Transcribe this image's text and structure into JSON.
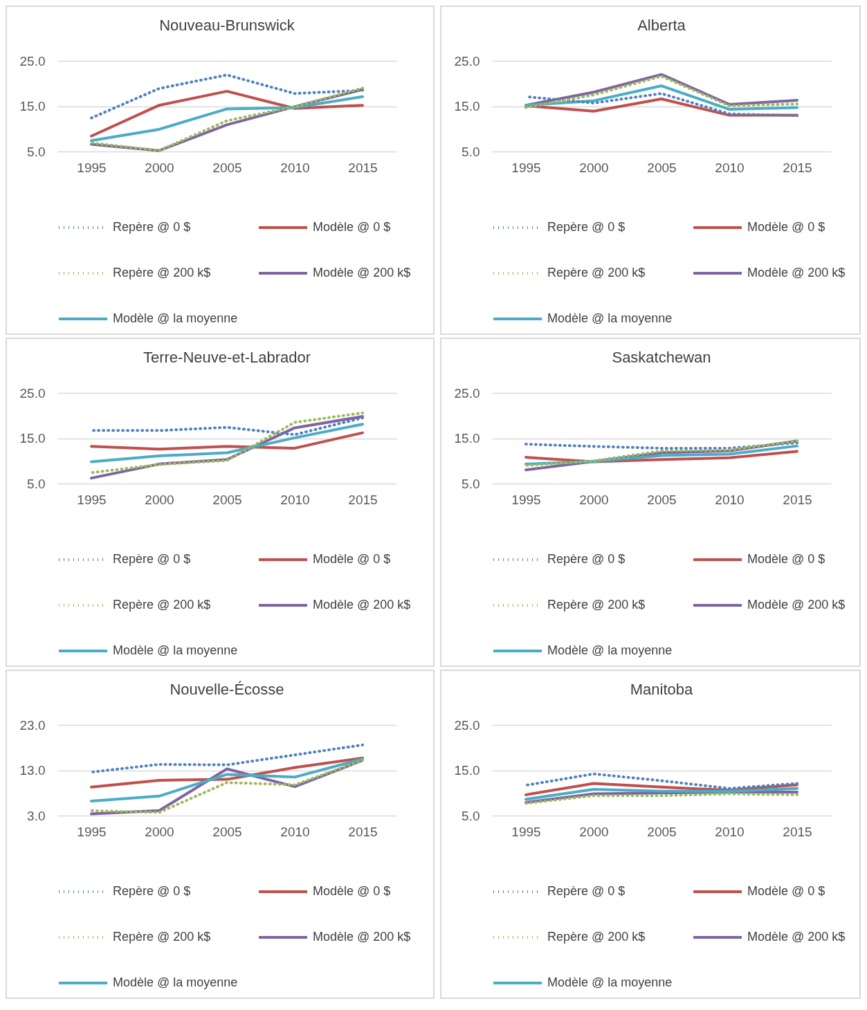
{
  "chart_data": [
    {
      "type": "line",
      "title": "Nouveau-Brunswick",
      "categories": [
        "1995",
        "2000",
        "2005",
        "2010",
        "2015"
      ],
      "ylim": [
        5,
        25
      ],
      "yticks": [
        {
          "value": 5,
          "label": "5.0"
        },
        {
          "value": 15,
          "label": "15.0"
        },
        {
          "value": 25,
          "label": "25.0"
        }
      ],
      "grid": "y",
      "legend": "bottom",
      "series": [
        {
          "name": "Repère @ 0 $",
          "color": "#4f81bd",
          "line_style": "dotted",
          "values": [
            12.4,
            18.9,
            21.9,
            17.8,
            18.5
          ]
        },
        {
          "name": "Modèle @ 0 $",
          "color": "#c0504d",
          "line_style": "solid",
          "values": [
            8.4,
            15.2,
            18.3,
            14.5,
            15.2
          ]
        },
        {
          "name": "Repère @ 200 k$",
          "color": "#9bbb59",
          "line_style": "dotted",
          "values": [
            6.9,
            5.2,
            11.8,
            14.9,
            19.0
          ]
        },
        {
          "name": "Modèle @ 200 k$",
          "color": "#8064a2",
          "line_style": "solid",
          "values": [
            6.6,
            5.2,
            10.9,
            14.9,
            18.7
          ]
        },
        {
          "name": "Modèle @ la moyenne",
          "color": "#4bacc6",
          "line_style": "solid",
          "values": [
            7.4,
            9.9,
            14.4,
            14.7,
            17.1
          ]
        }
      ]
    },
    {
      "type": "line",
      "title": "Alberta",
      "categories": [
        "1995",
        "2000",
        "2005",
        "2010",
        "2015"
      ],
      "ylim": [
        5,
        25
      ],
      "yticks": [
        {
          "value": 5,
          "label": "5.0"
        },
        {
          "value": 15,
          "label": "15.0"
        },
        {
          "value": 25,
          "label": "25.0"
        }
      ],
      "grid": "y",
      "legend": "bottom",
      "series": [
        {
          "name": "Repère @ 0 $",
          "color": "#4f81bd",
          "line_style": "dotted",
          "values": [
            17.1,
            15.7,
            17.8,
            13.3,
            12.9
          ]
        },
        {
          "name": "Modèle @ 0 $",
          "color": "#c0504d",
          "line_style": "solid",
          "values": [
            15.1,
            13.9,
            16.6,
            13.0,
            13.0
          ]
        },
        {
          "name": "Repère @ 200 k$",
          "color": "#9bbb59",
          "line_style": "dotted",
          "values": [
            14.7,
            17.5,
            21.6,
            15.1,
            15.5
          ]
        },
        {
          "name": "Modèle @ 200 k$",
          "color": "#8064a2",
          "line_style": "solid",
          "values": [
            15.2,
            18.1,
            22.0,
            15.4,
            16.3
          ]
        },
        {
          "name": "Modèle @ la moyenne",
          "color": "#4bacc6",
          "line_style": "solid",
          "values": [
            15.2,
            16.2,
            19.5,
            14.3,
            14.7
          ]
        }
      ]
    },
    {
      "type": "line",
      "title": "Terre-Neuve-et-Labrador",
      "categories": [
        "1995",
        "2000",
        "2005",
        "2010",
        "2015"
      ],
      "ylim": [
        5,
        25
      ],
      "yticks": [
        {
          "value": 5,
          "label": "5.0"
        },
        {
          "value": 15,
          "label": "15.0"
        },
        {
          "value": 25,
          "label": "25.0"
        }
      ],
      "grid": "y",
      "legend": "bottom",
      "series": [
        {
          "name": "Repère @ 0 $",
          "color": "#4f81bd",
          "line_style": "dotted",
          "values": [
            16.7,
            16.7,
            17.4,
            15.8,
            19.5
          ]
        },
        {
          "name": "Modèle @ 0 $",
          "color": "#c0504d",
          "line_style": "solid",
          "values": [
            13.2,
            12.6,
            13.2,
            12.8,
            16.2
          ]
        },
        {
          "name": "Repère @ 200 k$",
          "color": "#9bbb59",
          "line_style": "dotted",
          "values": [
            7.4,
            9.2,
            10.1,
            18.5,
            20.6
          ]
        },
        {
          "name": "Modèle @ 200 k$",
          "color": "#8064a2",
          "line_style": "solid",
          "values": [
            6.2,
            9.3,
            10.3,
            17.3,
            19.8
          ]
        },
        {
          "name": "Modèle @ la moyenne",
          "color": "#4bacc6",
          "line_style": "solid",
          "values": [
            9.8,
            11.1,
            11.8,
            15.1,
            18.1
          ]
        }
      ]
    },
    {
      "type": "line",
      "title": "Saskatchewan",
      "categories": [
        "1995",
        "2000",
        "2005",
        "2010",
        "2015"
      ],
      "ylim": [
        5,
        25
      ],
      "yticks": [
        {
          "value": 5,
          "label": "5.0"
        },
        {
          "value": 15,
          "label": "15.0"
        },
        {
          "value": 25,
          "label": "25.0"
        }
      ],
      "grid": "y",
      "legend": "bottom",
      "series": [
        {
          "name": "Repère @ 0 $",
          "color": "#4f81bd",
          "line_style": "dotted",
          "values": [
            13.7,
            13.2,
            12.8,
            12.8,
            14.0
          ]
        },
        {
          "name": "Modèle @ 0 $",
          "color": "#c0504d",
          "line_style": "solid",
          "values": [
            10.8,
            9.8,
            10.3,
            10.7,
            12.1
          ]
        },
        {
          "name": "Repère @ 200 k$",
          "color": "#9bbb59",
          "line_style": "dotted",
          "values": [
            9.0,
            10.0,
            12.2,
            12.4,
            14.4
          ]
        },
        {
          "name": "Modèle @ 200 k$",
          "color": "#8064a2",
          "line_style": "solid",
          "values": [
            8.0,
            9.9,
            11.8,
            12.2,
            14.4
          ]
        },
        {
          "name": "Modèle @ la moyenne",
          "color": "#4bacc6",
          "line_style": "solid",
          "values": [
            9.3,
            9.9,
            11.2,
            11.5,
            13.3
          ]
        }
      ]
    },
    {
      "type": "line",
      "title": "Nouvelle-Écosse",
      "categories": [
        "1995",
        "2000",
        "2005",
        "2010",
        "2015"
      ],
      "ylim": [
        3,
        23
      ],
      "yticks": [
        {
          "value": 3,
          "label": "3.0"
        },
        {
          "value": 13,
          "label": "13.0"
        },
        {
          "value": 23,
          "label": "23.0"
        }
      ],
      "grid": "y",
      "legend": "bottom",
      "series": [
        {
          "name": "Repère @ 0 $",
          "color": "#4f81bd",
          "line_style": "dotted",
          "values": [
            12.6,
            14.3,
            14.2,
            16.4,
            18.6
          ]
        },
        {
          "name": "Modèle @ 0 $",
          "color": "#c0504d",
          "line_style": "solid",
          "values": [
            9.3,
            10.8,
            11.0,
            13.6,
            15.7
          ]
        },
        {
          "name": "Repère @ 200 k$",
          "color": "#9bbb59",
          "line_style": "dotted",
          "values": [
            4.1,
            3.7,
            10.3,
            9.8,
            15.2
          ]
        },
        {
          "name": "Modèle @ 200 k$",
          "color": "#8064a2",
          "line_style": "solid",
          "values": [
            3.4,
            4.1,
            13.3,
            9.4,
            15.2
          ]
        },
        {
          "name": "Modèle @ la moyenne",
          "color": "#4bacc6",
          "line_style": "solid",
          "values": [
            6.2,
            7.3,
            12.1,
            11.5,
            15.5
          ]
        }
      ]
    },
    {
      "type": "line",
      "title": "Manitoba",
      "categories": [
        "1995",
        "2000",
        "2005",
        "2010",
        "2015"
      ],
      "ylim": [
        5,
        25
      ],
      "yticks": [
        {
          "value": 5,
          "label": "5.0"
        },
        {
          "value": 15,
          "label": "15.0"
        },
        {
          "value": 25,
          "label": "25.0"
        }
      ],
      "grid": "y",
      "legend": "bottom",
      "series": [
        {
          "name": "Repère @ 0 $",
          "color": "#4f81bd",
          "line_style": "dotted",
          "values": [
            11.7,
            14.2,
            12.7,
            11.0,
            12.1
          ]
        },
        {
          "name": "Modèle @ 0 $",
          "color": "#c0504d",
          "line_style": "solid",
          "values": [
            9.6,
            12.1,
            11.3,
            10.6,
            11.8
          ]
        },
        {
          "name": "Repère @ 200 k$",
          "color": "#9bbb59",
          "line_style": "dotted",
          "values": [
            7.7,
            9.4,
            9.4,
            9.8,
            9.6
          ]
        },
        {
          "name": "Modèle @ 200 k$",
          "color": "#8064a2",
          "line_style": "solid",
          "values": [
            7.9,
            9.8,
            10.0,
            10.2,
            10.2
          ]
        },
        {
          "name": "Modèle @ la moyenne",
          "color": "#4bacc6",
          "line_style": "solid",
          "values": [
            8.6,
            10.8,
            10.4,
            10.4,
            11.0
          ]
        }
      ]
    }
  ]
}
